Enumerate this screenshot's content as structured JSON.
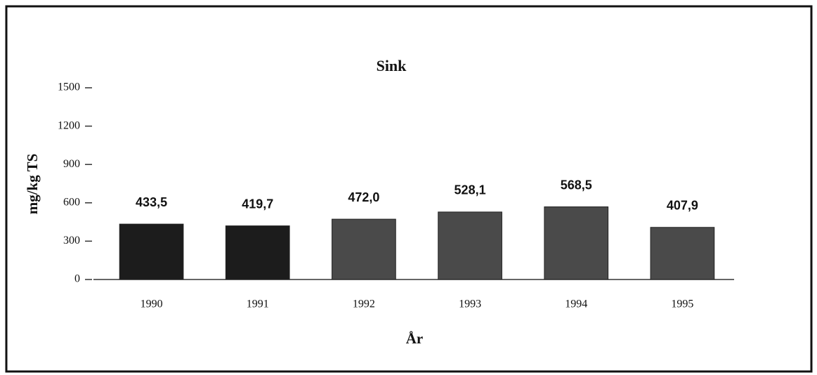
{
  "chart_data": {
    "type": "bar",
    "title": "Sink",
    "x_label": "År",
    "y_label": "mg/kg TS",
    "categories": [
      "1990",
      "1991",
      "1992",
      "1993",
      "1994",
      "1995"
    ],
    "values": [
      433.5,
      419.7,
      472.0,
      528.1,
      568.5,
      407.9
    ],
    "value_labels": [
      "433,5",
      "419,7",
      "472,0",
      "528,1",
      "568,5",
      "407,9"
    ],
    "colors": [
      "#1c1c1c",
      "#1c1c1c",
      "#4a4a4a",
      "#4a4a4a",
      "#4a4a4a",
      "#4a4a4a"
    ],
    "ylim": [
      0,
      1500
    ],
    "yticks": [
      0,
      300,
      600,
      900,
      1200,
      1500
    ],
    "grid": false
  }
}
